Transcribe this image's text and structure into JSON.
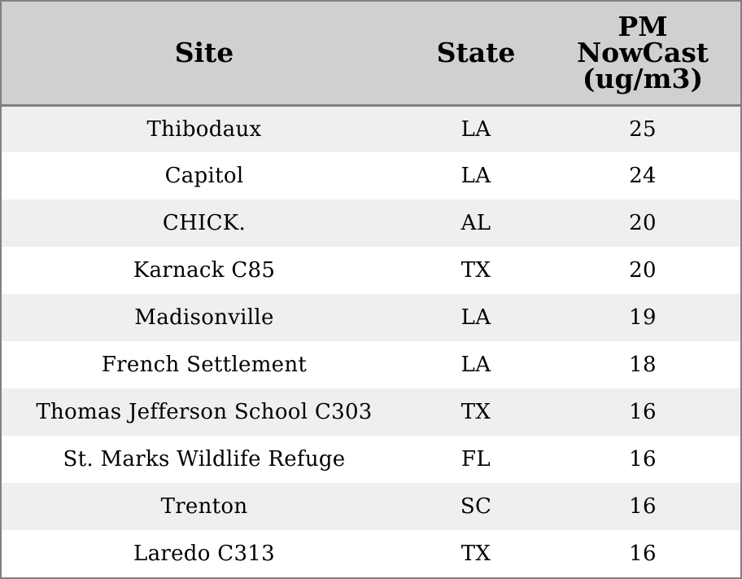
{
  "chart_data": {
    "type": "table",
    "columns": [
      "Site",
      "State",
      "PM NowCast (ug/m3)"
    ],
    "header": {
      "site": "Site",
      "state": "State",
      "pm_line1": "PM",
      "pm_line2": "NowCast",
      "pm_line3": "(ug/m3)"
    },
    "rows": [
      {
        "site": "Thibodaux",
        "state": "LA",
        "pm": "25"
      },
      {
        "site": "Capitol",
        "state": "LA",
        "pm": "24"
      },
      {
        "site": "CHICK.",
        "state": "AL",
        "pm": "20"
      },
      {
        "site": "Karnack C85",
        "state": "TX",
        "pm": "20"
      },
      {
        "site": "Madisonville",
        "state": "LA",
        "pm": "19"
      },
      {
        "site": "French Settlement",
        "state": "LA",
        "pm": "18"
      },
      {
        "site": "Thomas Jefferson School C303",
        "state": "TX",
        "pm": "16"
      },
      {
        "site": "St. Marks Wildlife Refuge",
        "state": "FL",
        "pm": "16"
      },
      {
        "site": "Trenton",
        "state": "SC",
        "pm": "16"
      },
      {
        "site": "Laredo C313",
        "state": "TX",
        "pm": "16"
      }
    ]
  },
  "colors": {
    "header_bg": "#d0d0d0",
    "odd_row_bg": "#efefef",
    "even_row_bg": "#ffffff",
    "border": "#808080"
  }
}
